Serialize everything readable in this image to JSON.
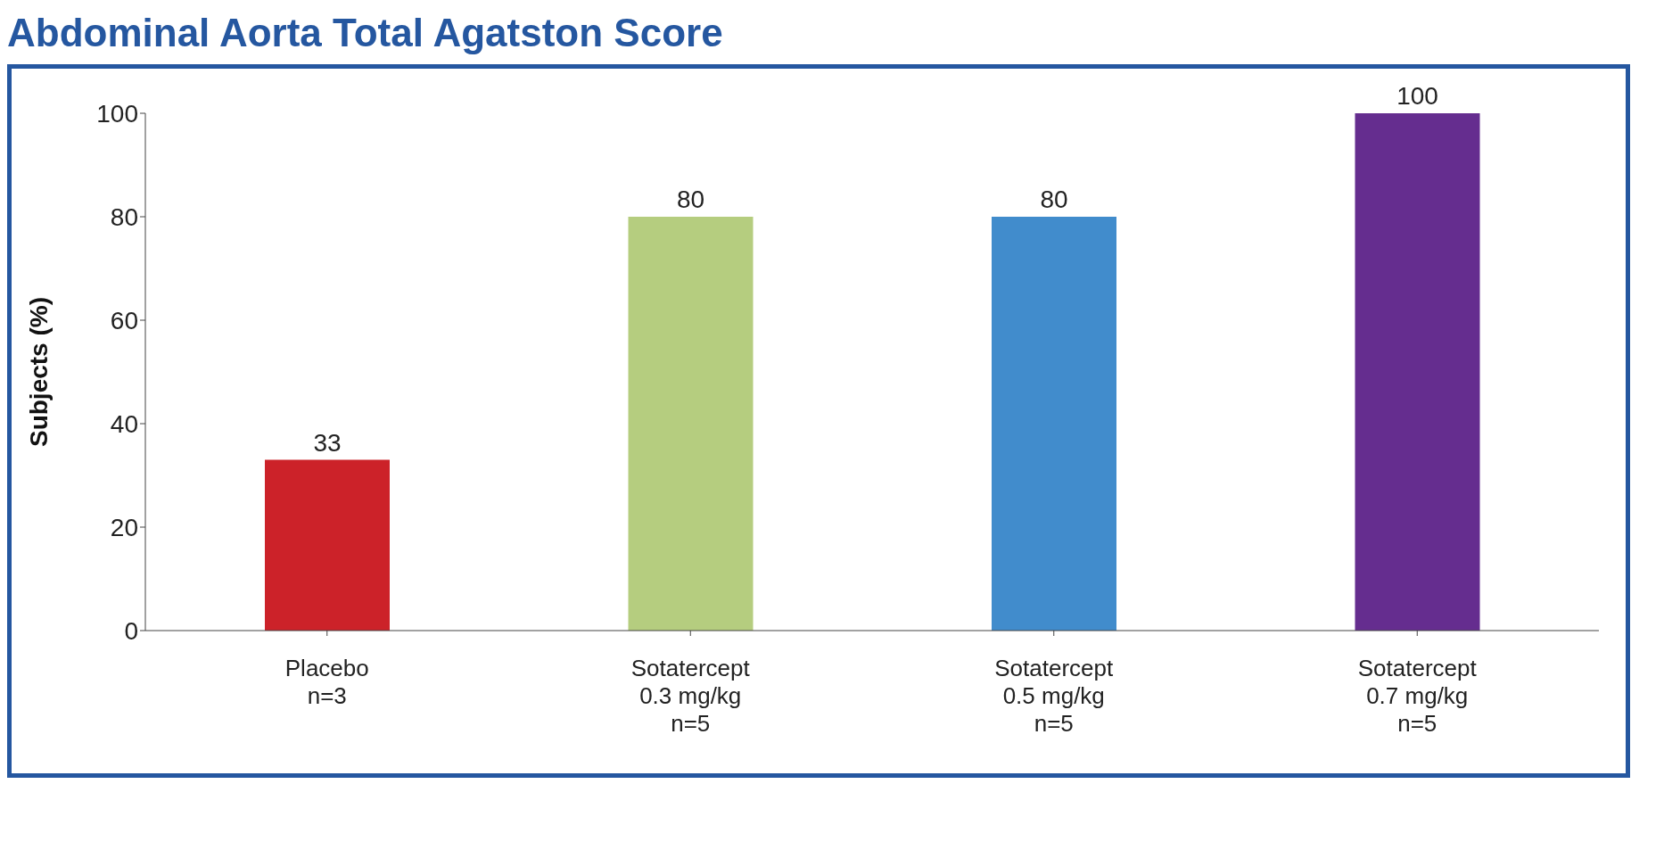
{
  "chart_data": {
    "type": "bar",
    "title": "Abdominal Aorta Total Agatston Score",
    "ylabel": "Subjects (%)",
    "categories": [
      "Placebo\nn=3",
      "Sotatercept\n0.3 mg/kg\nn=5",
      "Sotatercept\n0.5 mg/kg\nn=5",
      "Sotatercept\n0.7 mg/kg\nn=5"
    ],
    "values": [
      33,
      80,
      80,
      100
    ],
    "colors": [
      "#cc2229",
      "#b5cd7f",
      "#418ccc",
      "#652d8f"
    ],
    "ylim": [
      0,
      100
    ],
    "yticks": [
      0,
      20,
      40,
      60,
      80,
      100
    ],
    "grid": false,
    "data_labels": true
  }
}
